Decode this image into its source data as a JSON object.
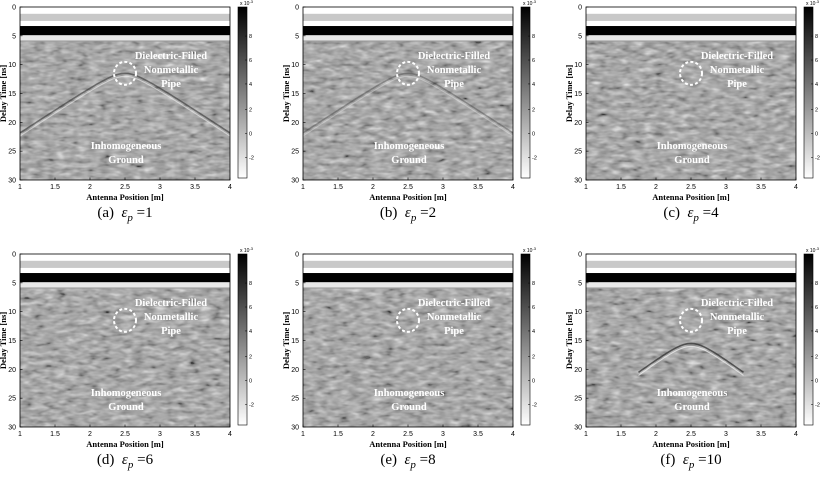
{
  "figure": {
    "common": {
      "xlabel": "Antenna Position  [m]",
      "ylabel": "Delay Time  [ns]",
      "x_ticks": [
        "1",
        "1.5",
        "2",
        "2.5",
        "3",
        "3.5",
        "4"
      ],
      "y_ticks": [
        "0",
        "5",
        "10",
        "15",
        "20",
        "25",
        "30"
      ],
      "colorbar_exponent": "x 10",
      "colorbar_exponent_power": "-3",
      "colorbar_ticks": [
        "8",
        "6",
        "4",
        "2",
        "0",
        "-2"
      ],
      "annotation_pipe": [
        "Dielectric-Filled",
        "Nonmetallic",
        "Pipe"
      ],
      "annotation_ground": [
        "Inhomogeneous",
        "Ground"
      ]
    },
    "panels": [
      {
        "caption_prefix": "(a)",
        "eps_symbol": "ε",
        "eps_sub": "p",
        "eps_eq": "=",
        "eps_value": "1",
        "hyperbola_strength": 0.55
      },
      {
        "caption_prefix": "(b)",
        "eps_symbol": "ε",
        "eps_sub": "p",
        "eps_eq": "=",
        "eps_value": "2",
        "hyperbola_strength": 0.35
      },
      {
        "caption_prefix": "(c)",
        "eps_symbol": "ε",
        "eps_sub": "p",
        "eps_eq": "=",
        "eps_value": "4",
        "hyperbola_strength": 0.0
      },
      {
        "caption_prefix": "(d)",
        "eps_symbol": "ε",
        "eps_sub": "p",
        "eps_eq": "=",
        "eps_value": "6",
        "hyperbola_strength": 0.0
      },
      {
        "caption_prefix": "(e)",
        "eps_symbol": "ε",
        "eps_sub": "p",
        "eps_eq": "=",
        "eps_value": "8",
        "hyperbola_strength": 0.0
      },
      {
        "caption_prefix": "(f)",
        "eps_symbol": "ε",
        "eps_sub": "p",
        "eps_eq": "=",
        "eps_value": "10",
        "hyperbola_strength": 0.7
      }
    ]
  }
}
